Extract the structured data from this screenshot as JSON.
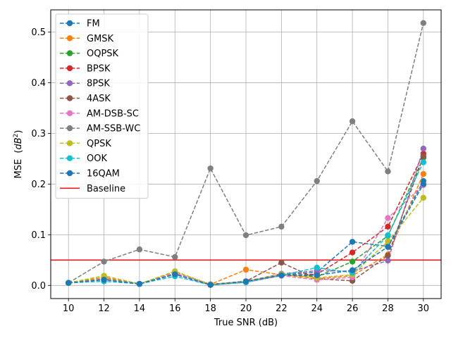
{
  "chart_data": {
    "type": "line",
    "xlabel": "True SNR (dB)",
    "ylabel": "MSE",
    "ylabel_unit": "(dB²)",
    "x": [
      10,
      12,
      14,
      16,
      18,
      20,
      22,
      24,
      26,
      28,
      30
    ],
    "xlim": [
      9,
      31
    ],
    "ylim": [
      -0.026,
      0.544
    ],
    "y_ticks": [
      0.0,
      0.1,
      0.2,
      0.3,
      0.4,
      0.5
    ],
    "y_tick_labels": [
      "0.0",
      "0.1",
      "0.2",
      "0.3",
      "0.4",
      "0.5"
    ],
    "x_tick_labels": [
      "10",
      "12",
      "14",
      "16",
      "18",
      "20",
      "22",
      "24",
      "26",
      "28",
      "30"
    ],
    "grid": true,
    "legend_position": "upper-left",
    "series": [
      {
        "name": "FM",
        "color": "#1f77b4",
        "style": "dashed-marker",
        "values": [
          0.005,
          0.012,
          0.003,
          0.024,
          0.002,
          0.008,
          0.021,
          0.026,
          0.086,
          0.077,
          0.206
        ]
      },
      {
        "name": "GMSK",
        "color": "#ff7f0e",
        "style": "dashed-marker",
        "values": [
          0.005,
          0.016,
          0.003,
          0.027,
          0.002,
          0.031,
          0.021,
          0.013,
          0.019,
          0.061,
          0.22
        ]
      },
      {
        "name": "OQPSK",
        "color": "#2ca02c",
        "style": "dashed-marker",
        "values": [
          0.005,
          0.013,
          0.003,
          0.023,
          0.001,
          0.008,
          0.021,
          0.017,
          0.047,
          0.098,
          0.252
        ]
      },
      {
        "name": "BPSK",
        "color": "#d62728",
        "style": "dashed-marker",
        "values": [
          0.005,
          0.012,
          0.003,
          0.022,
          0.002,
          0.008,
          0.02,
          0.022,
          0.065,
          0.116,
          0.26
        ]
      },
      {
        "name": "8PSK",
        "color": "#9467bd",
        "style": "dashed-marker",
        "values": [
          0.005,
          0.012,
          0.003,
          0.022,
          0.001,
          0.008,
          0.023,
          0.029,
          0.028,
          0.049,
          0.27
        ]
      },
      {
        "name": "4ASK",
        "color": "#8c564b",
        "style": "dashed-marker",
        "values": [
          0.005,
          0.012,
          0.003,
          0.022,
          0.001,
          0.008,
          0.045,
          0.013,
          0.009,
          0.059,
          0.255
        ]
      },
      {
        "name": "AM-DSB-SC",
        "color": "#e377c2",
        "style": "dashed-marker",
        "values": [
          0.005,
          0.012,
          0.003,
          0.024,
          0.001,
          0.006,
          0.019,
          0.011,
          0.016,
          0.133,
          0.198
        ]
      },
      {
        "name": "AM-SSB-WC",
        "color": "#7f7f7f",
        "style": "dashed-marker",
        "values": [
          0.005,
          0.047,
          0.071,
          0.056,
          0.231,
          0.099,
          0.116,
          0.206,
          0.324,
          0.225,
          0.518
        ]
      },
      {
        "name": "QPSK",
        "color": "#bcbd22",
        "style": "dashed-marker",
        "values": [
          0.005,
          0.019,
          0.003,
          0.028,
          0.002,
          0.008,
          0.022,
          0.015,
          0.021,
          0.087,
          0.173
        ]
      },
      {
        "name": "OOK",
        "color": "#17becf",
        "style": "dashed-marker",
        "values": [
          0.005,
          0.008,
          0.003,
          0.018,
          0.001,
          0.006,
          0.02,
          0.035,
          0.025,
          0.099,
          0.243
        ]
      },
      {
        "name": "16QAM",
        "color": "#1f77b4",
        "style": "dashed-marker",
        "values": [
          0.005,
          0.011,
          0.003,
          0.022,
          0.001,
          0.008,
          0.02,
          0.02,
          0.03,
          0.076,
          0.2
        ]
      }
    ],
    "baseline": {
      "name": "Baseline",
      "color": "#e41a1c",
      "value": 0.05
    }
  }
}
